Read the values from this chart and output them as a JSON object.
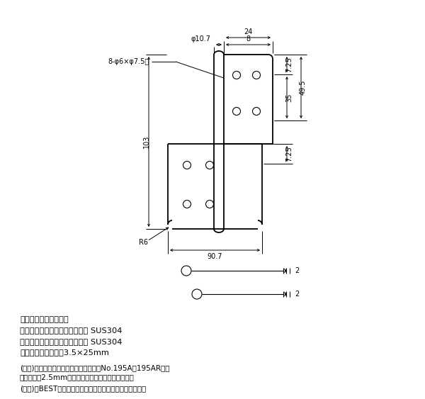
{
  "bg_color": "#ffffff",
  "line_color": "#000000",
  "fig_width": 6.0,
  "fig_height": 5.63,
  "annotations": {
    "dim_24": "24",
    "dim_phi107": "φ10.7",
    "dim_8": "8",
    "dim_7_25_top": "7.25",
    "dim_35": "35",
    "dim_49_5": "49.5",
    "dim_7_25_bot": "7.25",
    "dim_103": "103",
    "dim_90_7": "90.7",
    "dim_r6": "R6",
    "dim_holes": "8-φ6×φ7.5皿",
    "dim_2_top": "2",
    "dim_2_bot": "2",
    "info1": "用　途　軽量室内ドア",
    "info2": "材　質　羽　根：ステンレス鉰 SUS304",
    "info3": "　　　　軸　芯：ステンレス鉰 SUS304",
    "info4": "付属ネジ　缺木ネコ3.5×25mm",
    "note1": "(注１)　ドアクローザを取付ける場合はNo.195A・195AR等、",
    "note1b": "　　　板厚2.5mm以上の蟞番をお薦めいたします。",
    "note2": "(注２)　BESTの刈印が見える側を枚に取付けてください。"
  }
}
